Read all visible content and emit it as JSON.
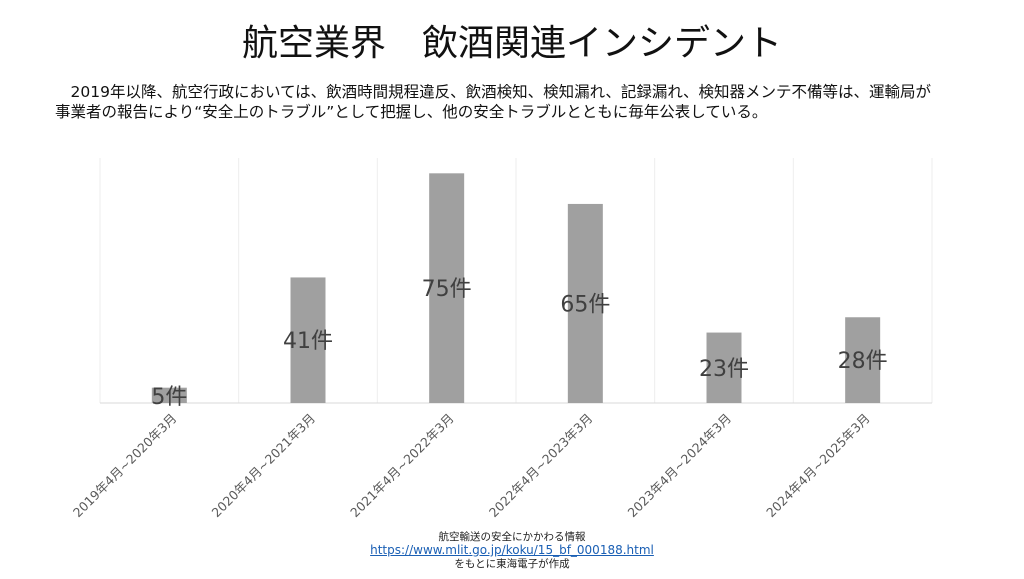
{
  "title": "航空業界　飲酒関連インシデント",
  "description": [
    "　2019年以降、航空行政においては、飲酒時間規程違反、飲酒検知、検知漏れ、記録漏れ、検知器メンテ不備等は、運輸局が",
    "事業者の報告により“安全上のトラブル”として把握し、他の安全トラブルとともに毎年公表している。"
  ],
  "chart_data": {
    "type": "bar",
    "categories": [
      "2019年4月~2020年3月",
      "2020年4月~2021年3月",
      "2021年4月~2022年3月",
      "2022年4月~2023年3月",
      "2023年4月~2024年3月",
      "2024年4月~2025年3月"
    ],
    "values": [
      5,
      41,
      75,
      65,
      23,
      28
    ],
    "data_labels": [
      "5件",
      "41件",
      "75件",
      "65件",
      "23件",
      "28件"
    ],
    "ylim": [
      0,
      80
    ],
    "bar_color": "#a0a0a0",
    "grid": "vertical"
  },
  "footer": {
    "line1": "航空輸送の安全にかかわる情報",
    "link": "https://www.mlit.go.jp/koku/15_bf_000188.html",
    "line3": "をもとに東海電子が作成"
  }
}
